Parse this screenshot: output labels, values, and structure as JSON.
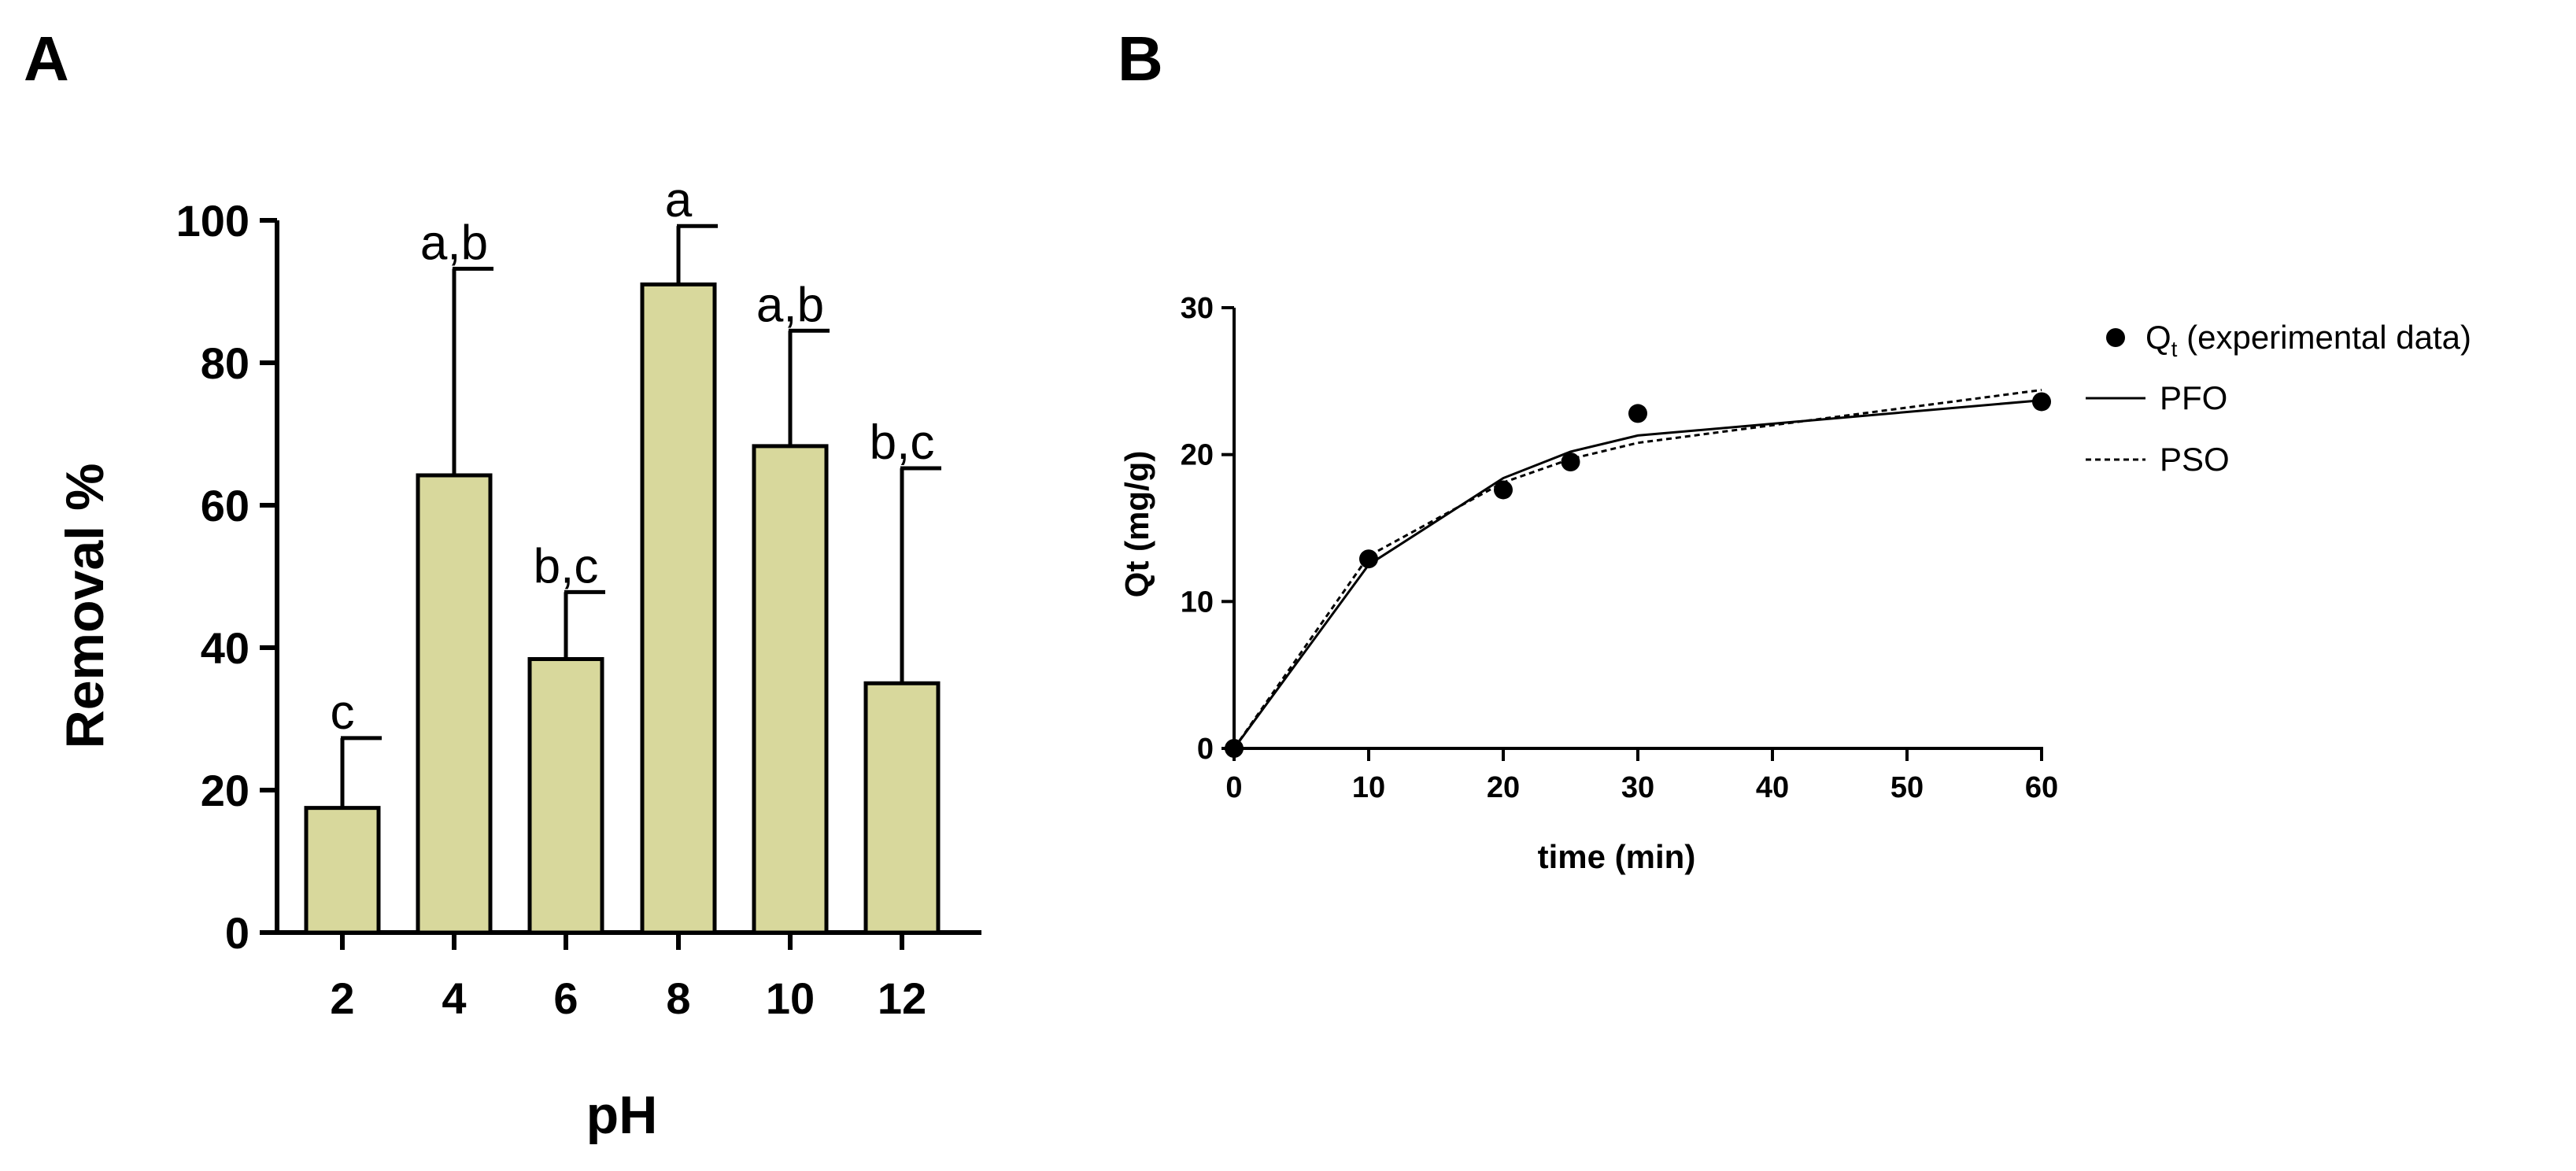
{
  "figure": {
    "panel_a_label": "A",
    "panel_b_label": "B"
  },
  "colors": {
    "bar_fill": "#d8d89c",
    "ink": "#000000"
  },
  "chart_data": [
    {
      "type": "bar",
      "panel": "A",
      "categories": [
        "2",
        "4",
        "6",
        "8",
        "10",
        "12"
      ],
      "values": [
        17.5,
        64.2,
        38.4,
        91.0,
        68.3,
        35.0
      ],
      "error_upper": [
        27.3,
        93.2,
        47.8,
        99.2,
        84.5,
        65.2
      ],
      "significance_labels": [
        "c",
        "a,b",
        "b,c",
        "a",
        "a,b",
        "b,c"
      ],
      "title": "",
      "xlabel": "pH",
      "ylabel": "Removal %",
      "ylim": [
        0,
        100
      ],
      "yticks": [
        0,
        20,
        40,
        60,
        80,
        100
      ],
      "grid": false
    },
    {
      "type": "scatter",
      "panel": "B",
      "title": "",
      "xlabel": "time (min)",
      "ylabel": "Qt (mg/g)",
      "xlim": [
        0,
        60
      ],
      "ylim": [
        0,
        30
      ],
      "xticks": [
        0,
        10,
        20,
        30,
        40,
        50,
        60
      ],
      "yticks": [
        0,
        10,
        20,
        30
      ],
      "grid": false,
      "legend_position": "top-right",
      "legend": {
        "experimental_main": "Q",
        "experimental_sub": "t",
        "experimental_rest": " (experimental data)",
        "pfo": "PFO",
        "pso": "PSO"
      },
      "series": [
        {
          "name": "Qt (experimental data)",
          "kind": "points",
          "x": [
            0,
            10,
            20,
            25,
            30,
            60
          ],
          "y": [
            0,
            12.9,
            17.6,
            19.5,
            22.8,
            23.6
          ]
        },
        {
          "name": "PFO",
          "kind": "solid-line",
          "x": [
            0,
            10,
            20,
            25,
            30,
            60
          ],
          "y": [
            0,
            12.5,
            18.4,
            20.2,
            21.3,
            23.7
          ]
        },
        {
          "name": "PSO",
          "kind": "dashed-line",
          "x": [
            0,
            10,
            20,
            25,
            30,
            60
          ],
          "y": [
            0,
            13.1,
            18.1,
            19.7,
            20.8,
            24.4
          ]
        }
      ]
    }
  ]
}
